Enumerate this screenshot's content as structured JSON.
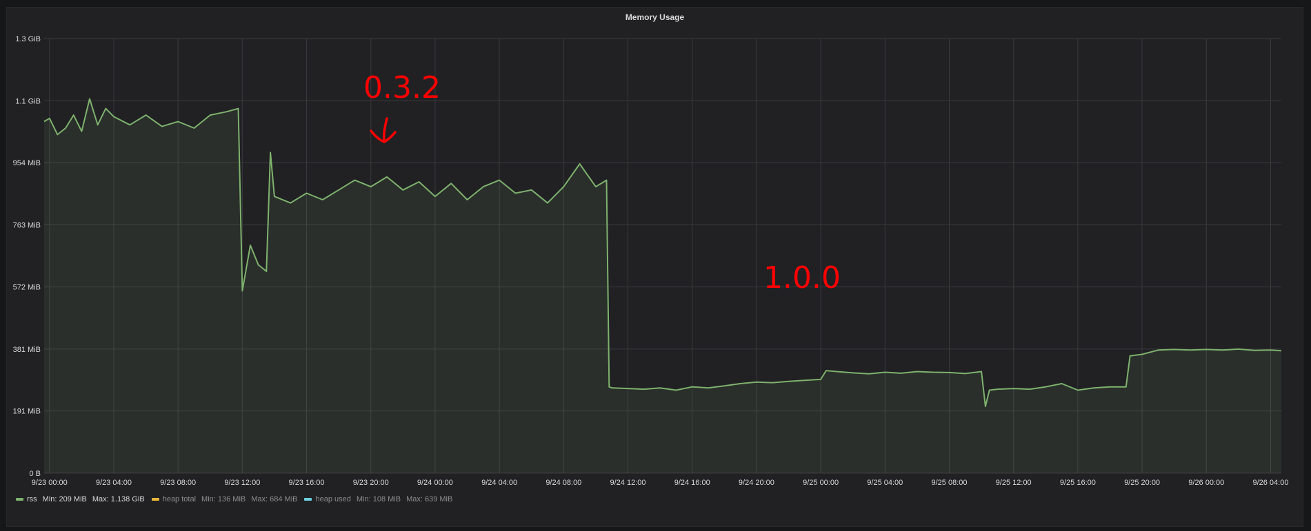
{
  "panel": {
    "title": "Memory Usage"
  },
  "annotations": [
    {
      "text": "0.3.2",
      "arrow": "arrow-down-icon"
    },
    {
      "text": "1.0.0"
    }
  ],
  "legend": [
    {
      "name": "rss",
      "min": "Min: 209 MiB",
      "max": "Max: 1.138 GiB",
      "color": "#7eb26d",
      "visible": true
    },
    {
      "name": "heap total",
      "min": "Min: 136 MiB",
      "max": "Max: 684 MiB",
      "color": "#eab839",
      "visible": false
    },
    {
      "name": "heap used",
      "min": "Min: 108 MiB",
      "max": "Max: 639 MiB",
      "color": "#6ed0e0",
      "visible": false
    }
  ],
  "chart_data": {
    "type": "area",
    "title": "Memory Usage",
    "ylabel": "",
    "xlabel": "",
    "y_unit": "MiB",
    "ylim": [
      0,
      1335
    ],
    "xlim": [
      "9/22 23:40",
      "9/26 04:40"
    ],
    "grid": true,
    "legend_placement": "bottom-left",
    "y_ticks": [
      {
        "value": 0,
        "label": "0 B"
      },
      {
        "value": 191,
        "label": "191 MiB"
      },
      {
        "value": 381,
        "label": "381 MiB"
      },
      {
        "value": 572,
        "label": "572 MiB"
      },
      {
        "value": 763,
        "label": "763 MiB"
      },
      {
        "value": 954,
        "label": "954 MiB"
      },
      {
        "value": 1144,
        "label": "1.1 GiB"
      },
      {
        "value": 1335,
        "label": "1.3 GiB"
      }
    ],
    "x_ticks": [
      "9/23 00:00",
      "9/23 04:00",
      "9/23 08:00",
      "9/23 12:00",
      "9/23 16:00",
      "9/23 20:00",
      "9/24 00:00",
      "9/24 04:00",
      "9/24 08:00",
      "9/24 12:00",
      "9/24 16:00",
      "9/24 20:00",
      "9/25 00:00",
      "9/25 04:00",
      "9/25 08:00",
      "9/25 12:00",
      "9/25 16:00",
      "9/25 20:00",
      "9/26 00:00",
      "9/26 04:00"
    ],
    "series": [
      {
        "name": "rss",
        "color": "#7eb26d",
        "x": [
          "9/22 23:40",
          "9/23 00:00",
          "9/23 00:30",
          "9/23 01:00",
          "9/23 01:30",
          "9/23 02:00",
          "9/23 02:30",
          "9/23 03:00",
          "9/23 03:30",
          "9/23 04:00",
          "9/23 05:00",
          "9/23 06:00",
          "9/23 07:00",
          "9/23 08:00",
          "9/23 09:00",
          "9/23 10:00",
          "9/23 11:00",
          "9/23 11:45",
          "9/23 12:00",
          "9/23 12:30",
          "9/23 13:00",
          "9/23 13:30",
          "9/23 13:45",
          "9/23 14:00",
          "9/23 15:00",
          "9/23 16:00",
          "9/23 17:00",
          "9/23 18:00",
          "9/23 19:00",
          "9/23 20:00",
          "9/23 21:00",
          "9/23 22:00",
          "9/23 23:00",
          "9/24 00:00",
          "9/24 01:00",
          "9/24 02:00",
          "9/24 03:00",
          "9/24 04:00",
          "9/24 05:00",
          "9/24 06:00",
          "9/24 07:00",
          "9/24 08:00",
          "9/24 09:00",
          "9/24 10:00",
          "9/24 10:40",
          "9/24 10:50",
          "9/24 11:00",
          "9/24 12:00",
          "9/24 13:00",
          "9/24 14:00",
          "9/24 15:00",
          "9/24 16:00",
          "9/24 17:00",
          "9/24 18:00",
          "9/24 19:00",
          "9/24 20:00",
          "9/24 21:00",
          "9/24 22:00",
          "9/24 23:00",
          "9/25 00:00",
          "9/25 00:20",
          "9/25 01:00",
          "9/25 02:00",
          "9/25 03:00",
          "9/25 04:00",
          "9/25 05:00",
          "9/25 06:00",
          "9/25 07:00",
          "9/25 08:00",
          "9/25 09:00",
          "9/25 10:00",
          "9/25 10:15",
          "9/25 10:30",
          "9/25 11:00",
          "9/25 12:00",
          "9/25 13:00",
          "9/25 14:00",
          "9/25 15:00",
          "9/25 16:00",
          "9/25 17:00",
          "9/25 18:00",
          "9/25 19:00",
          "9/25 19:15",
          "9/25 20:00",
          "9/25 21:00",
          "9/25 22:00",
          "9/25 23:00",
          "9/26 00:00",
          "9/26 01:00",
          "9/26 02:00",
          "9/26 03:00",
          "9/26 04:00",
          "9/26 04:40"
        ],
        "y": [
          1080,
          1090,
          1040,
          1060,
          1100,
          1050,
          1150,
          1070,
          1120,
          1095,
          1070,
          1100,
          1065,
          1080,
          1060,
          1100,
          1110,
          1120,
          560,
          700,
          640,
          620,
          985,
          850,
          830,
          860,
          840,
          870,
          900,
          880,
          910,
          870,
          895,
          850,
          890,
          840,
          880,
          900,
          860,
          870,
          830,
          880,
          950,
          880,
          900,
          265,
          262,
          260,
          258,
          262,
          255,
          265,
          262,
          268,
          275,
          280,
          278,
          282,
          285,
          288,
          315,
          312,
          308,
          305,
          310,
          307,
          312,
          310,
          309,
          306,
          312,
          205,
          255,
          258,
          260,
          258,
          265,
          275,
          255,
          262,
          265,
          265,
          360,
          365,
          378,
          380,
          378,
          380,
          378,
          381,
          377,
          378,
          376
        ]
      }
    ]
  }
}
